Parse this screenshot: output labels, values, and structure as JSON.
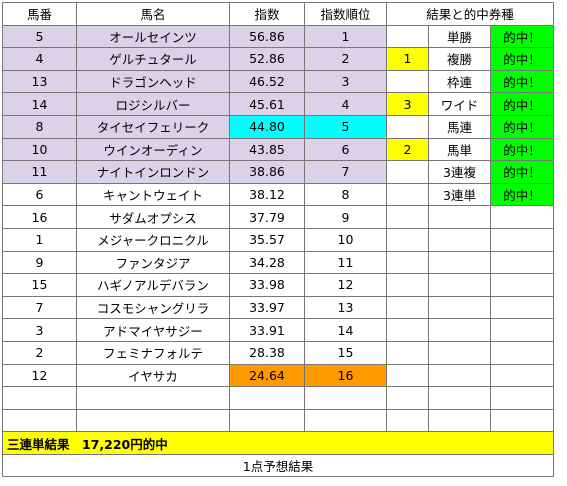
{
  "headers": {
    "number": "馬番",
    "name": "馬名",
    "index": "指数",
    "rank": "指数順位",
    "result": "結果と的中券種"
  },
  "rows": [
    {
      "num": "5",
      "name": "オールセインツ",
      "index": "56.86",
      "rank": "1",
      "mark": "",
      "ticket": "単勝",
      "hit": "的中！"
    },
    {
      "num": "4",
      "name": "ゲルチュタール",
      "index": "52.86",
      "rank": "2",
      "mark": "1",
      "ticket": "複勝",
      "hit": "的中！"
    },
    {
      "num": "13",
      "name": "ドラゴンヘッド",
      "index": "46.52",
      "rank": "3",
      "mark": "",
      "ticket": "枠連",
      "hit": "的中！"
    },
    {
      "num": "14",
      "name": "ロジシルバー",
      "index": "45.61",
      "rank": "4",
      "mark": "3",
      "ticket": "ワイド",
      "hit": "的中！"
    },
    {
      "num": "8",
      "name": "タイセイフェリーク",
      "index": "44.80",
      "rank": "5",
      "mark": "",
      "ticket": "馬連",
      "hit": "的中！"
    },
    {
      "num": "10",
      "name": "ウインオーディン",
      "index": "43.85",
      "rank": "6",
      "mark": "2",
      "ticket": "馬単",
      "hit": "的中！"
    },
    {
      "num": "11",
      "name": "ナイトインロンドン",
      "index": "38.86",
      "rank": "7",
      "mark": "",
      "ticket": "3連複",
      "hit": "的中！"
    },
    {
      "num": "6",
      "name": "キャントウェイト",
      "index": "38.12",
      "rank": "8",
      "mark": "",
      "ticket": "3連単",
      "hit": "的中！"
    },
    {
      "num": "16",
      "name": "サダムオプシス",
      "index": "37.79",
      "rank": "9",
      "mark": "",
      "ticket": "",
      "hit": ""
    },
    {
      "num": "1",
      "name": "メジャークロニクル",
      "index": "35.57",
      "rank": "10",
      "mark": "",
      "ticket": "",
      "hit": ""
    },
    {
      "num": "9",
      "name": "ファンタジア",
      "index": "34.28",
      "rank": "11",
      "mark": "",
      "ticket": "",
      "hit": ""
    },
    {
      "num": "15",
      "name": "ハギノアルデバラン",
      "index": "33.98",
      "rank": "12",
      "mark": "",
      "ticket": "",
      "hit": ""
    },
    {
      "num": "7",
      "name": "コスモシャングリラ",
      "index": "33.97",
      "rank": "13",
      "mark": "",
      "ticket": "",
      "hit": ""
    },
    {
      "num": "3",
      "name": "アドマイヤサジー",
      "index": "33.91",
      "rank": "14",
      "mark": "",
      "ticket": "",
      "hit": ""
    },
    {
      "num": "2",
      "name": "フェミナフォルテ",
      "index": "28.38",
      "rank": "15",
      "mark": "",
      "ticket": "",
      "hit": ""
    },
    {
      "num": "12",
      "name": "イヤサカ",
      "index": "24.64",
      "rank": "16",
      "mark": "",
      "ticket": "",
      "hit": ""
    },
    {
      "num": "",
      "name": "",
      "index": "",
      "rank": "",
      "mark": "",
      "ticket": "",
      "hit": ""
    },
    {
      "num": "",
      "name": "",
      "index": "",
      "rank": "",
      "mark": "",
      "ticket": "",
      "hit": ""
    }
  ],
  "summary": "三連単結果　17,220円的中",
  "footer": "1点予想結果",
  "colors": {
    "shaded_row": "#d9d2e9",
    "cyan_highlight": "#00ffff",
    "orange_highlight": "#ff9900",
    "yellow": "#ffff00",
    "green": "#00ff00"
  }
}
